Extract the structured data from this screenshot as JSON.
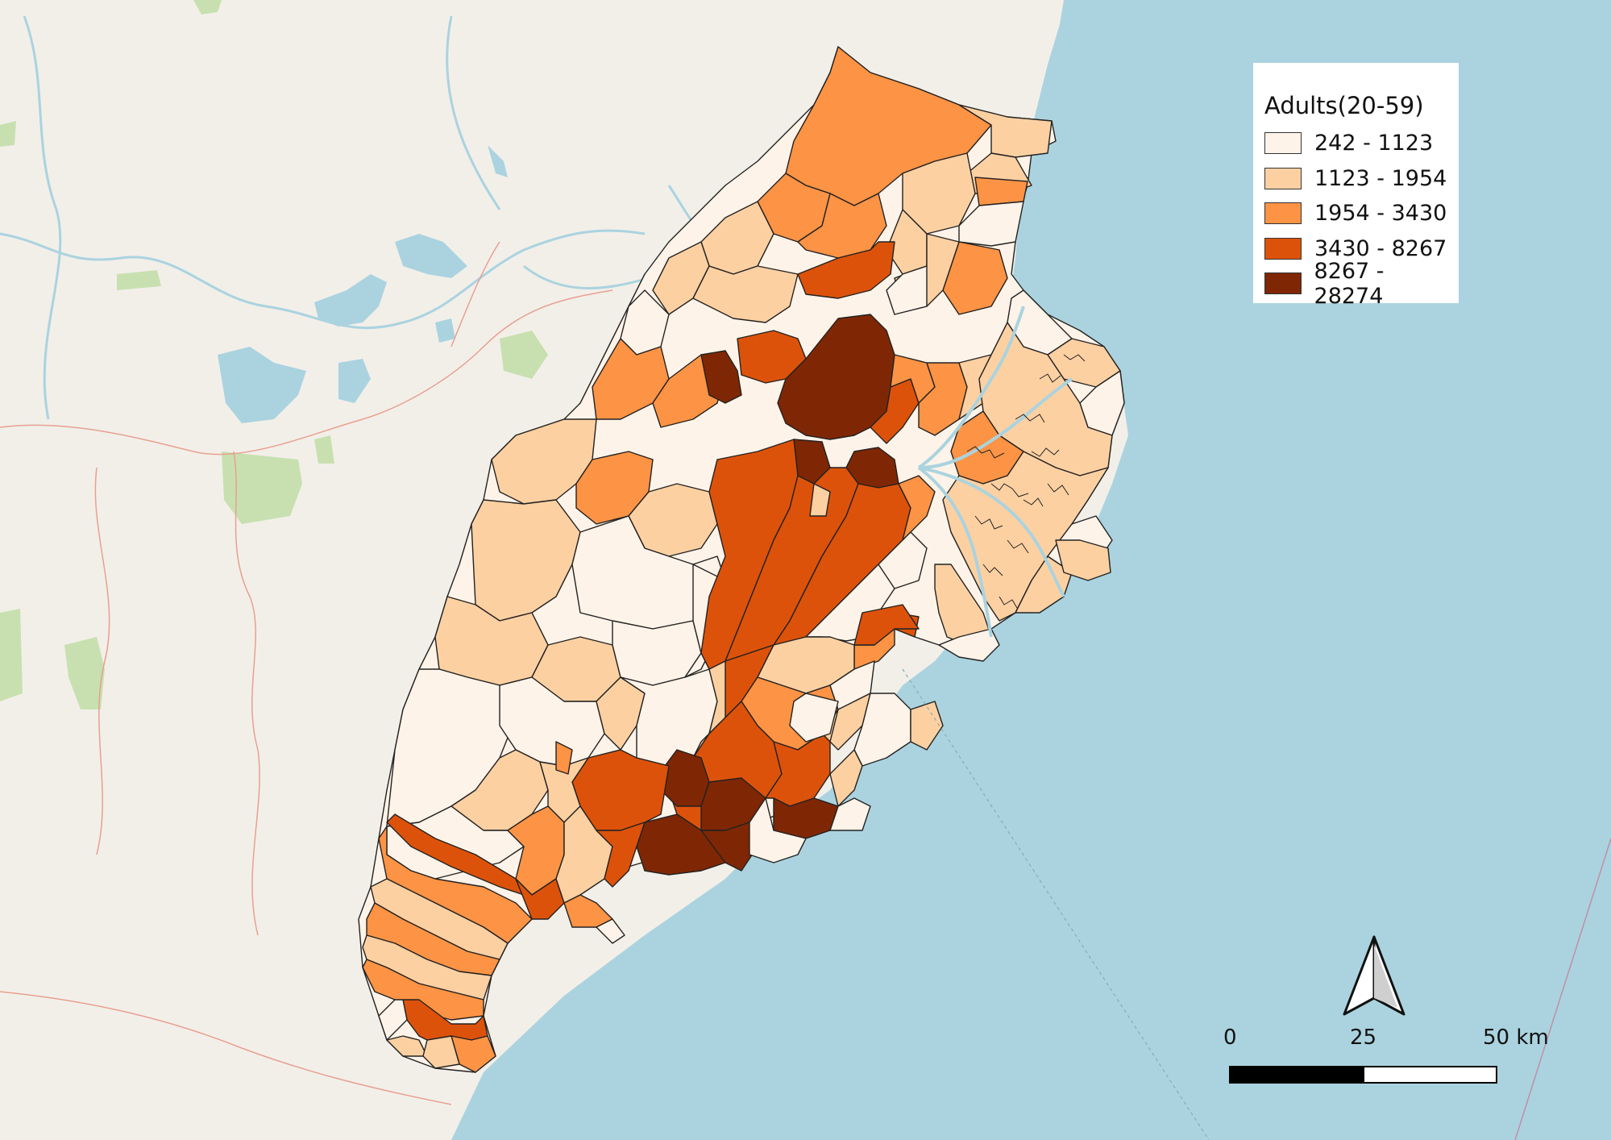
{
  "legend": {
    "title": "Adults(20-59)",
    "classes": [
      {
        "label": "242 - 1123",
        "color": "#fef3e8"
      },
      {
        "label": "1123 - 1954",
        "color": "#fdd0a2"
      },
      {
        "label": "1954 - 3430",
        "color": "#fd9344"
      },
      {
        "label": "3430 - 8267",
        "color": "#dd520a"
      },
      {
        "label": "8267 - 28274",
        "color": "#7f2704"
      }
    ]
  },
  "scale_bar": {
    "labels": [
      "0",
      "25",
      "50 km"
    ]
  },
  "north_arrow": {
    "icon": "north-arrow-icon"
  },
  "colors": {
    "sea": "#aad3df",
    "land": "#f2efe9",
    "water": "#aad3df",
    "park": "#c8e0b0",
    "boundary": "#e8a090"
  }
}
